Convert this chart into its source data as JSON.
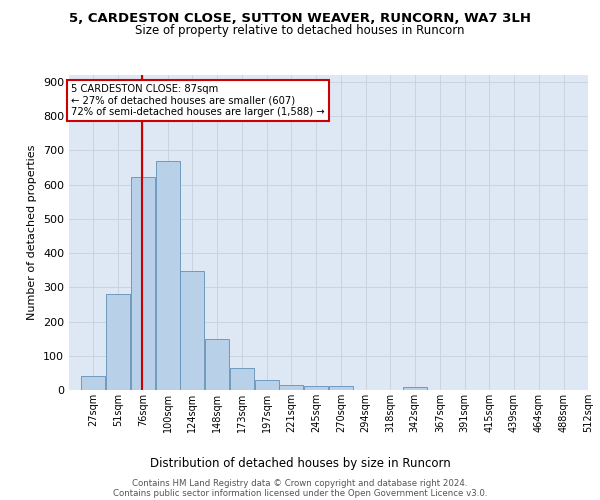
{
  "title_line1": "5, CARDESTON CLOSE, SUTTON WEAVER, RUNCORN, WA7 3LH",
  "title_line2": "Size of property relative to detached houses in Runcorn",
  "xlabel": "Distribution of detached houses by size in Runcorn",
  "ylabel": "Number of detached properties",
  "footer_line1": "Contains HM Land Registry data © Crown copyright and database right 2024.",
  "footer_line2": "Contains public sector information licensed under the Open Government Licence v3.0.",
  "annotation_line1": "5 CARDESTON CLOSE: 87sqm",
  "annotation_line2": "← 27% of detached houses are smaller (607)",
  "annotation_line3": "72% of semi-detached houses are larger (1,588) →",
  "property_size": 87,
  "bar_color": "#b8d0e8",
  "bar_edge_color": "#6090b8",
  "red_line_color": "#cc0000",
  "annotation_box_color": "#cc0000",
  "grid_color": "#c8d0dc",
  "bg_color": "#dde8f4",
  "background_color": "#ffffff",
  "categories": [
    "27sqm",
    "51sqm",
    "76sqm",
    "100sqm",
    "124sqm",
    "148sqm",
    "173sqm",
    "197sqm",
    "221sqm",
    "245sqm",
    "270sqm",
    "294sqm",
    "318sqm",
    "342sqm",
    "367sqm",
    "391sqm",
    "415sqm",
    "439sqm",
    "464sqm",
    "488sqm",
    "512sqm"
  ],
  "bar_edges": [
    27,
    51,
    76,
    100,
    124,
    148,
    173,
    197,
    221,
    245,
    270,
    294,
    318,
    342,
    367,
    391,
    415,
    439,
    464,
    488,
    512
  ],
  "bar_heights": [
    42,
    280,
    622,
    670,
    348,
    148,
    65,
    30,
    15,
    12,
    12,
    0,
    0,
    10,
    0,
    0,
    0,
    0,
    0,
    0,
    0
  ],
  "ylim": [
    0,
    920
  ],
  "xlim_left": 15,
  "xlim_right": 524,
  "bin_width": 24,
  "yticks": [
    0,
    100,
    200,
    300,
    400,
    500,
    600,
    700,
    800,
    900
  ]
}
